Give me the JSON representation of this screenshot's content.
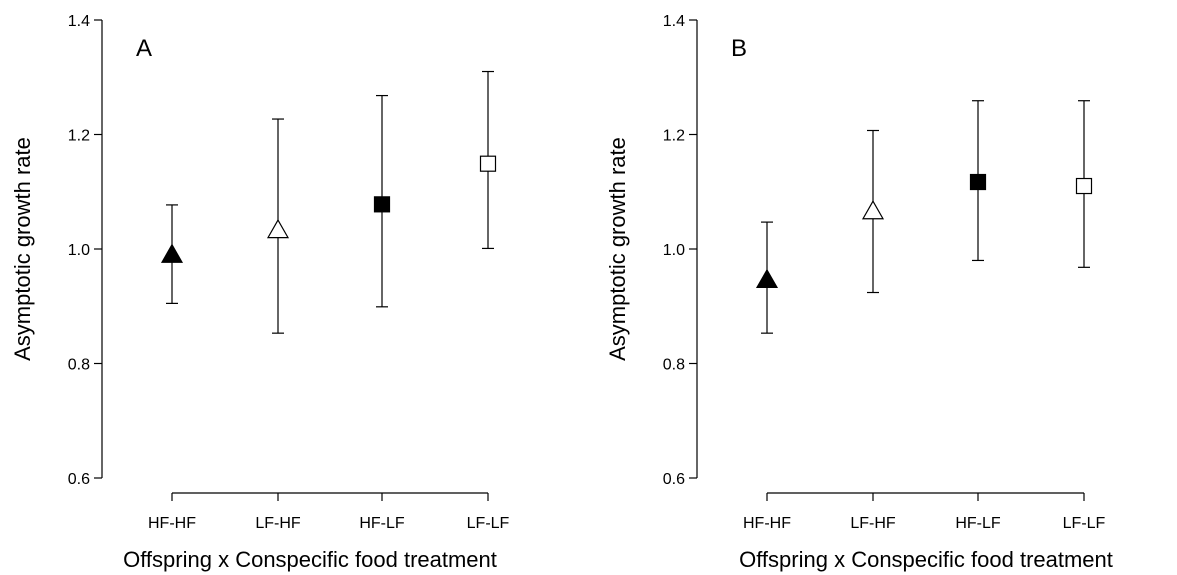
{
  "chart_data": [
    {
      "type": "scatter",
      "panel_label": "A",
      "xlabel": "Offspring x Conspecific food treatment",
      "ylabel": "Asymptotic growth rate",
      "categories": [
        "HF-HF",
        "LF-HF",
        "HF-LF",
        "LF-LF"
      ],
      "ylim": [
        0.6,
        1.4
      ],
      "yticks": [
        "0.6",
        "0.8",
        "1.0",
        "1.2",
        "1.4"
      ],
      "grid": false,
      "points": [
        {
          "category": "HF-HF",
          "value": 0.99,
          "lower": 0.905,
          "upper": 1.077,
          "marker": "triangle",
          "fill": "filled"
        },
        {
          "category": "LF-HF",
          "value": 1.033,
          "lower": 0.853,
          "upper": 1.227,
          "marker": "triangle",
          "fill": "open"
        },
        {
          "category": "HF-LF",
          "value": 1.078,
          "lower": 0.899,
          "upper": 1.268,
          "marker": "square",
          "fill": "filled"
        },
        {
          "category": "LF-LF",
          "value": 1.149,
          "lower": 1.001,
          "upper": 1.31,
          "marker": "square",
          "fill": "open"
        }
      ]
    },
    {
      "type": "scatter",
      "panel_label": "B",
      "xlabel": "Offspring x Conspecific food treatment",
      "ylabel": "Asymptotic growth rate",
      "categories": [
        "HF-HF",
        "LF-HF",
        "HF-LF",
        "LF-LF"
      ],
      "ylim": [
        0.6,
        1.4
      ],
      "yticks": [
        "0.6",
        "0.8",
        "1.0",
        "1.2",
        "1.4"
      ],
      "grid": false,
      "points": [
        {
          "category": "HF-HF",
          "value": 0.946,
          "lower": 0.853,
          "upper": 1.047,
          "marker": "triangle",
          "fill": "filled"
        },
        {
          "category": "LF-HF",
          "value": 1.066,
          "lower": 0.924,
          "upper": 1.207,
          "marker": "triangle",
          "fill": "open"
        },
        {
          "category": "HF-LF",
          "value": 1.117,
          "lower": 0.98,
          "upper": 1.259,
          "marker": "square",
          "fill": "filled"
        },
        {
          "category": "LF-LF",
          "value": 1.11,
          "lower": 0.968,
          "upper": 1.259,
          "marker": "square",
          "fill": "open"
        }
      ]
    }
  ]
}
